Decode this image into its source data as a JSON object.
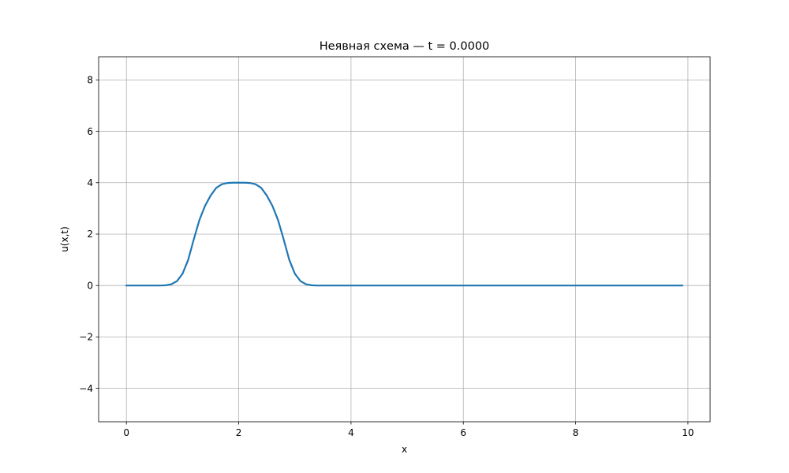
{
  "chart_data": {
    "type": "line",
    "title": "Неявная схема — t = 0.0000",
    "xlabel": "x",
    "ylabel": "u(x,t)",
    "xlim": [
      -0.495,
      10.395
    ],
    "ylim": [
      -5.3,
      8.9
    ],
    "xticks": [
      0,
      2,
      4,
      6,
      8,
      10
    ],
    "yticks": [
      -4,
      -2,
      0,
      2,
      4,
      6,
      8
    ],
    "xtick_labels": [
      "0",
      "2",
      "4",
      "6",
      "8",
      "10"
    ],
    "ytick_labels": [
      "−4",
      "−2",
      "0",
      "2",
      "4",
      "6",
      "8"
    ],
    "grid": true,
    "line_color": "#1f77b4",
    "series": [
      {
        "x": [
          0.0,
          0.1,
          0.2,
          0.3,
          0.4,
          0.5,
          0.6,
          0.7,
          0.8,
          0.9,
          1.0,
          1.1,
          1.2,
          1.3,
          1.4,
          1.5,
          1.6,
          1.7,
          1.8,
          1.9,
          2.0,
          2.1,
          2.2,
          2.3,
          2.4,
          2.5,
          2.6,
          2.7,
          2.8,
          2.9,
          3.0,
          3.1,
          3.2,
          3.3,
          3.4,
          3.5,
          3.6,
          3.7,
          3.8,
          3.9,
          4.0,
          4.1,
          4.2,
          4.3,
          4.4,
          4.5,
          4.6,
          4.7,
          4.8,
          4.9,
          5.0,
          5.1,
          5.2,
          5.3,
          5.4,
          5.5,
          5.6,
          5.7,
          5.8,
          5.9,
          6.0,
          6.1,
          6.2,
          6.3,
          6.4,
          6.5,
          6.6,
          6.7,
          6.8,
          6.9,
          7.0,
          7.1,
          7.2,
          7.3,
          7.4,
          7.5,
          7.6,
          7.7,
          7.8,
          7.9,
          8.0,
          8.1,
          8.2,
          8.3,
          8.4,
          8.5,
          8.6,
          8.7,
          8.8,
          8.9,
          9.0,
          9.1,
          9.2,
          9.3,
          9.4,
          9.5,
          9.6,
          9.7,
          9.8,
          9.9
        ],
        "values": [
          0,
          0,
          0,
          0,
          0,
          0,
          0,
          0.01,
          0.05,
          0.17,
          0.46,
          1.0,
          1.8,
          2.55,
          3.1,
          3.5,
          3.8,
          3.94,
          3.99,
          4.0,
          4.0,
          4.0,
          3.99,
          3.94,
          3.8,
          3.5,
          3.1,
          2.55,
          1.8,
          1.0,
          0.46,
          0.17,
          0.05,
          0.01,
          0,
          0,
          0,
          0,
          0,
          0,
          0,
          0,
          0,
          0,
          0,
          0,
          0,
          0,
          0,
          0,
          0,
          0,
          0,
          0,
          0,
          0,
          0,
          0,
          0,
          0,
          0,
          0,
          0,
          0,
          0,
          0,
          0,
          0,
          0,
          0,
          0,
          0,
          0,
          0,
          0,
          0,
          0,
          0,
          0,
          0,
          0,
          0,
          0,
          0,
          0,
          0,
          0,
          0,
          0,
          0,
          0,
          0,
          0,
          0,
          0,
          0,
          0,
          0,
          0,
          0
        ]
      }
    ]
  }
}
